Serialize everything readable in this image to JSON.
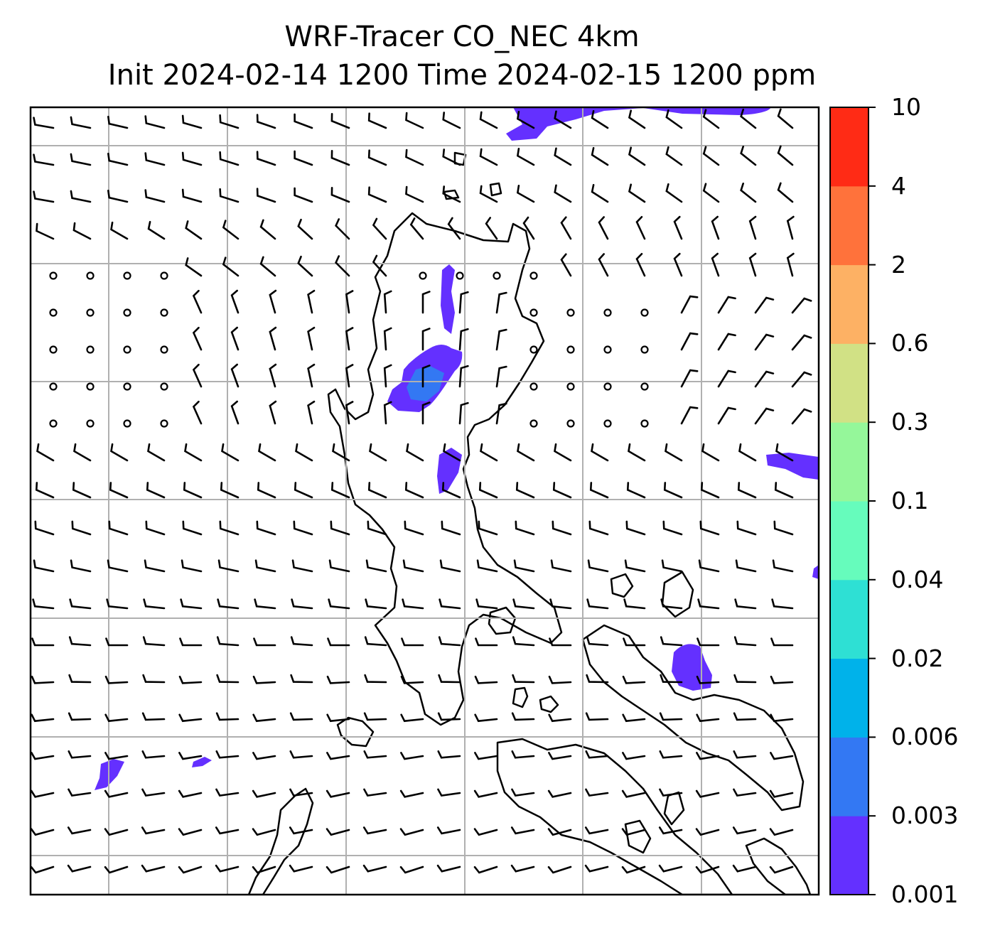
{
  "title": {
    "line1": "WRF-Tracer CO_NEC 4km",
    "line2": "Init 2024-02-14 1200 Time 2024-02-15 1200 ppm"
  },
  "colorbar": {
    "levels": [
      "0.001",
      "0.003",
      "0.006",
      "0.02",
      "0.04",
      "0.1",
      "0.3",
      "0.6",
      "2",
      "4",
      "10"
    ],
    "colors": [
      "#6430ff",
      "#3378f3",
      "#00b2ea",
      "#2ee0d4",
      "#66fcbc",
      "#95f79a",
      "#d1e185",
      "#fdb164",
      "#ff723b",
      "#ff2b15"
    ]
  },
  "map": {
    "gridlines": true,
    "wind_barbs": true,
    "field": "CO_NEC tracer concentration",
    "outline_color": "#000000",
    "grid_color": "#b0b0b0"
  }
}
